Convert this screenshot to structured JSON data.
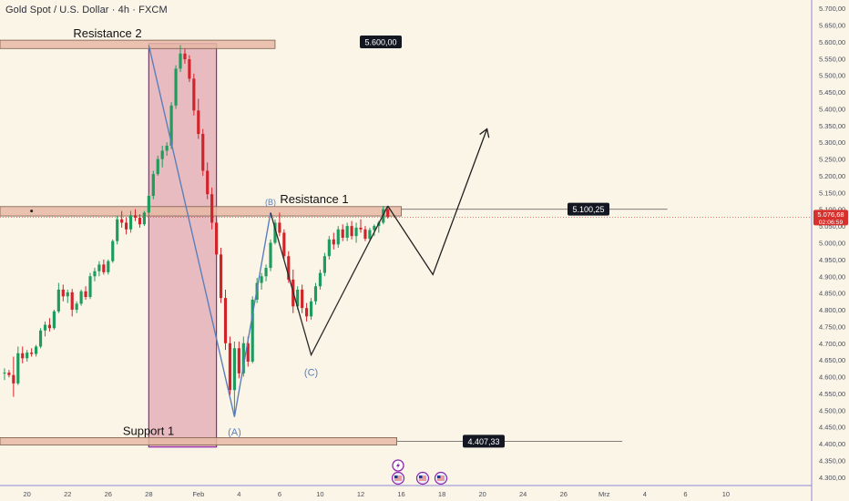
{
  "header": {
    "symbol_title": "Gold Spot / U.S. Dollar · 4h · FXCM"
  },
  "colors": {
    "background": "#fbf5e7",
    "bull": "#1e9b5d",
    "bear": "#d1232a",
    "zone_fill": "#e6b9a4",
    "zone_stroke": "#7a5d4c",
    "highlight_fill": "#e2a7b4",
    "highlight_stroke": "#8e24aa",
    "wave_line": "#5b7fba",
    "projection_line": "#1f1f1f",
    "current_price_bg": "#d6312d",
    "label_bg": "#131722",
    "axis_text": "#4a4e59",
    "axis_line": "#8e89d6"
  },
  "chart_data": {
    "type": "candlestick",
    "title": "Gold Spot / U.S. Dollar · 4h · FXCM",
    "y_axis": {
      "range": [
        4275,
        5725
      ],
      "ticks": [
        "5.700,00",
        "5.650,00",
        "5.600,00",
        "5.550,00",
        "5.500,00",
        "5.450,00",
        "5.400,00",
        "5.350,00",
        "5.300,00",
        "5.250,00",
        "5.200,00",
        "5.150,00",
        "5.100,00",
        "5.050,00",
        "5.000,00",
        "4.950,00",
        "4.900,00",
        "4.850,00",
        "4.800,00",
        "4.750,00",
        "4.700,00",
        "4.650,00",
        "4.600,00",
        "4.550,00",
        "4.500,00",
        "4.450,00",
        "4.400,00",
        "4.350,00",
        "4.300,00"
      ]
    },
    "x_axis": {
      "range": [
        0,
        90
      ],
      "ticks": [
        {
          "label": "20",
          "x": 3
        },
        {
          "label": "22",
          "x": 7.5
        },
        {
          "label": "26",
          "x": 12
        },
        {
          "label": "28",
          "x": 16.5
        },
        {
          "label": "Feb",
          "x": 22
        },
        {
          "label": "4",
          "x": 26.5
        },
        {
          "label": "6",
          "x": 31
        },
        {
          "label": "10",
          "x": 35.5
        },
        {
          "label": "12",
          "x": 40
        },
        {
          "label": "16",
          "x": 44.5
        },
        {
          "label": "18",
          "x": 49
        },
        {
          "label": "20",
          "x": 53.5
        },
        {
          "label": "24",
          "x": 58
        },
        {
          "label": "26",
          "x": 62.5
        },
        {
          "label": "Mrz",
          "x": 67
        },
        {
          "label": "4",
          "x": 71.5
        },
        {
          "label": "6",
          "x": 76
        },
        {
          "label": "10",
          "x": 80.5
        }
      ]
    },
    "candles": [
      {
        "x": 0.5,
        "o": 4610,
        "h": 4625,
        "l": 4590,
        "c": 4612
      },
      {
        "x": 1,
        "o": 4612,
        "h": 4620,
        "l": 4598,
        "c": 4605
      },
      {
        "x": 1.5,
        "o": 4605,
        "h": 4660,
        "l": 4540,
        "c": 4580
      },
      {
        "x": 2,
        "o": 4580,
        "h": 4690,
        "l": 4575,
        "c": 4670
      },
      {
        "x": 2.5,
        "o": 4670,
        "h": 4690,
        "l": 4640,
        "c": 4655
      },
      {
        "x": 3,
        "o": 4655,
        "h": 4680,
        "l": 4645,
        "c": 4672
      },
      {
        "x": 3.5,
        "o": 4672,
        "h": 4685,
        "l": 4660,
        "c": 4668
      },
      {
        "x": 4,
        "o": 4668,
        "h": 4695,
        "l": 4660,
        "c": 4690
      },
      {
        "x": 4.5,
        "o": 4690,
        "h": 4745,
        "l": 4685,
        "c": 4738
      },
      {
        "x": 5,
        "o": 4738,
        "h": 4765,
        "l": 4720,
        "c": 4755
      },
      {
        "x": 5.5,
        "o": 4755,
        "h": 4775,
        "l": 4735,
        "c": 4745
      },
      {
        "x": 6,
        "o": 4745,
        "h": 4800,
        "l": 4740,
        "c": 4795
      },
      {
        "x": 6.5,
        "o": 4795,
        "h": 4880,
        "l": 4790,
        "c": 4860
      },
      {
        "x": 7,
        "o": 4860,
        "h": 4875,
        "l": 4825,
        "c": 4840
      },
      {
        "x": 7.5,
        "o": 4840,
        "h": 4860,
        "l": 4820,
        "c": 4852
      },
      {
        "x": 8,
        "o": 4852,
        "h": 4862,
        "l": 4780,
        "c": 4800
      },
      {
        "x": 8.5,
        "o": 4800,
        "h": 4825,
        "l": 4790,
        "c": 4818
      },
      {
        "x": 9,
        "o": 4818,
        "h": 4860,
        "l": 4812,
        "c": 4855
      },
      {
        "x": 9.5,
        "o": 4855,
        "h": 4870,
        "l": 4830,
        "c": 4838
      },
      {
        "x": 10,
        "o": 4838,
        "h": 4910,
        "l": 4832,
        "c": 4900
      },
      {
        "x": 10.5,
        "o": 4900,
        "h": 4925,
        "l": 4885,
        "c": 4915
      },
      {
        "x": 11,
        "o": 4915,
        "h": 4945,
        "l": 4900,
        "c": 4935
      },
      {
        "x": 11.5,
        "o": 4935,
        "h": 4950,
        "l": 4905,
        "c": 4912
      },
      {
        "x": 12,
        "o": 4912,
        "h": 4950,
        "l": 4905,
        "c": 4945
      },
      {
        "x": 12.5,
        "o": 4945,
        "h": 5010,
        "l": 4940,
        "c": 5005
      },
      {
        "x": 13,
        "o": 5005,
        "h": 5080,
        "l": 4995,
        "c": 5070
      },
      {
        "x": 13.5,
        "o": 5070,
        "h": 5095,
        "l": 5045,
        "c": 5060
      },
      {
        "x": 14,
        "o": 5060,
        "h": 5075,
        "l": 5025,
        "c": 5040
      },
      {
        "x": 14.5,
        "o": 5040,
        "h": 5095,
        "l": 5030,
        "c": 5082
      },
      {
        "x": 15,
        "o": 5082,
        "h": 5100,
        "l": 5065,
        "c": 5075
      },
      {
        "x": 15.5,
        "o": 5075,
        "h": 5085,
        "l": 5045,
        "c": 5055
      },
      {
        "x": 16,
        "o": 5055,
        "h": 5095,
        "l": 5050,
        "c": 5090
      },
      {
        "x": 16.5,
        "o": 5090,
        "h": 5150,
        "l": 5070,
        "c": 5140
      },
      {
        "x": 17,
        "o": 5140,
        "h": 5215,
        "l": 5130,
        "c": 5205
      },
      {
        "x": 17.5,
        "o": 5205,
        "h": 5260,
        "l": 5200,
        "c": 5250
      },
      {
        "x": 18,
        "o": 5250,
        "h": 5290,
        "l": 5225,
        "c": 5275
      },
      {
        "x": 18.5,
        "o": 5275,
        "h": 5300,
        "l": 5260,
        "c": 5290
      },
      {
        "x": 19,
        "o": 5290,
        "h": 5420,
        "l": 5280,
        "c": 5410
      },
      {
        "x": 19.5,
        "o": 5410,
        "h": 5530,
        "l": 5400,
        "c": 5520
      },
      {
        "x": 20,
        "o": 5520,
        "h": 5590,
        "l": 5510,
        "c": 5565
      },
      {
        "x": 20.5,
        "o": 5565,
        "h": 5580,
        "l": 5535,
        "c": 5548
      },
      {
        "x": 21,
        "o": 5548,
        "h": 5560,
        "l": 5480,
        "c": 5490
      },
      {
        "x": 21.5,
        "o": 5490,
        "h": 5505,
        "l": 5380,
        "c": 5395
      },
      {
        "x": 22,
        "o": 5395,
        "h": 5430,
        "l": 5310,
        "c": 5325
      },
      {
        "x": 22.5,
        "o": 5325,
        "h": 5340,
        "l": 5200,
        "c": 5215
      },
      {
        "x": 23,
        "o": 5215,
        "h": 5240,
        "l": 5130,
        "c": 5145
      },
      {
        "x": 23.5,
        "o": 5145,
        "h": 5165,
        "l": 5040,
        "c": 5060
      },
      {
        "x": 24,
        "o": 5060,
        "h": 5080,
        "l": 4950,
        "c": 4965
      },
      {
        "x": 24.5,
        "o": 4965,
        "h": 4985,
        "l": 4820,
        "c": 4835
      },
      {
        "x": 25,
        "o": 4835,
        "h": 4860,
        "l": 4680,
        "c": 4700
      },
      {
        "x": 25.5,
        "o": 4700,
        "h": 4720,
        "l": 4545,
        "c": 4560
      },
      {
        "x": 26,
        "o": 4560,
        "h": 4705,
        "l": 4480,
        "c": 4685
      },
      {
        "x": 26.5,
        "o": 4685,
        "h": 4705,
        "l": 4595,
        "c": 4610
      },
      {
        "x": 27,
        "o": 4610,
        "h": 4720,
        "l": 4600,
        "c": 4700
      },
      {
        "x": 27.5,
        "o": 4700,
        "h": 4720,
        "l": 4630,
        "c": 4645
      },
      {
        "x": 28,
        "o": 4645,
        "h": 4840,
        "l": 4640,
        "c": 4830
      },
      {
        "x": 28.5,
        "o": 4830,
        "h": 4895,
        "l": 4820,
        "c": 4880
      },
      {
        "x": 29,
        "o": 4880,
        "h": 4910,
        "l": 4860,
        "c": 4900
      },
      {
        "x": 29.5,
        "o": 4900,
        "h": 4935,
        "l": 4885,
        "c": 4925
      },
      {
        "x": 30,
        "o": 4925,
        "h": 5010,
        "l": 4915,
        "c": 5000
      },
      {
        "x": 30.5,
        "o": 5000,
        "h": 5070,
        "l": 4995,
        "c": 5060
      },
      {
        "x": 31,
        "o": 5060,
        "h": 5090,
        "l": 5020,
        "c": 5030
      },
      {
        "x": 31.5,
        "o": 5030,
        "h": 5040,
        "l": 4950,
        "c": 4960
      },
      {
        "x": 32,
        "o": 4960,
        "h": 4975,
        "l": 4880,
        "c": 4890
      },
      {
        "x": 32.5,
        "o": 4890,
        "h": 4920,
        "l": 4790,
        "c": 4810
      },
      {
        "x": 33,
        "o": 4810,
        "h": 4870,
        "l": 4800,
        "c": 4860
      },
      {
        "x": 33.5,
        "o": 4860,
        "h": 4875,
        "l": 4790,
        "c": 4805
      },
      {
        "x": 34,
        "o": 4805,
        "h": 4820,
        "l": 4765,
        "c": 4780
      },
      {
        "x": 34.5,
        "o": 4780,
        "h": 4835,
        "l": 4770,
        "c": 4825
      },
      {
        "x": 35,
        "o": 4825,
        "h": 4880,
        "l": 4815,
        "c": 4870
      },
      {
        "x": 35.5,
        "o": 4870,
        "h": 4920,
        "l": 4860,
        "c": 4910
      },
      {
        "x": 36,
        "o": 4910,
        "h": 4970,
        "l": 4900,
        "c": 4960
      },
      {
        "x": 36.5,
        "o": 4960,
        "h": 5020,
        "l": 4950,
        "c": 5010
      },
      {
        "x": 37,
        "o": 5010,
        "h": 5030,
        "l": 4980,
        "c": 4995
      },
      {
        "x": 37.5,
        "o": 4995,
        "h": 5050,
        "l": 4985,
        "c": 5040
      },
      {
        "x": 38,
        "o": 5040,
        "h": 5055,
        "l": 5005,
        "c": 5015
      },
      {
        "x": 38.5,
        "o": 5015,
        "h": 5060,
        "l": 5005,
        "c": 5050
      },
      {
        "x": 39,
        "o": 5050,
        "h": 5065,
        "l": 5010,
        "c": 5020
      },
      {
        "x": 39.5,
        "o": 5020,
        "h": 5060,
        "l": 5000,
        "c": 5045
      },
      {
        "x": 40,
        "o": 5045,
        "h": 5070,
        "l": 5030,
        "c": 5040
      },
      {
        "x": 40.5,
        "o": 5040,
        "h": 5050,
        "l": 5005,
        "c": 5012
      },
      {
        "x": 41,
        "o": 5012,
        "h": 5045,
        "l": 5005,
        "c": 5038
      },
      {
        "x": 41.5,
        "o": 5038,
        "h": 5055,
        "l": 5020,
        "c": 5050
      },
      {
        "x": 42,
        "o": 5050,
        "h": 5065,
        "l": 5030,
        "c": 5060
      },
      {
        "x": 42.5,
        "o": 5060,
        "h": 5110,
        "l": 5055,
        "c": 5100
      },
      {
        "x": 43,
        "o": 5100,
        "h": 5108,
        "l": 5072,
        "c": 5077
      }
    ],
    "zones": [
      {
        "name": "Resistance 2",
        "top": 5605,
        "bottom": 5580,
        "x_end": 30.5,
        "label": "Resistance 2",
        "price_label": "5.600,00"
      },
      {
        "name": "Resistance 1",
        "top": 5108,
        "bottom": 5080,
        "x_end": 44.5,
        "label": "Resistance 1",
        "price_label": "5.100,25"
      },
      {
        "name": "Support 1",
        "top": 4418,
        "bottom": 4396,
        "x_end": 44,
        "label": "Support 1",
        "price_label": "4.407,33"
      }
    ],
    "highlight_range": {
      "x_start": 16.5,
      "x_end": 24,
      "top": 5595,
      "bottom": 4390
    },
    "wave_points": [
      {
        "x": 16.5,
        "y": 5590
      },
      {
        "x": 26,
        "y": 4480
      },
      {
        "x": 30,
        "y": 5090
      },
      {
        "x": 34.5,
        "y": 4665
      },
      {
        "x": 43,
        "y": 5110
      }
    ],
    "wave_labels": [
      {
        "label": "(A)",
        "x": 26,
        "y": 4460
      },
      {
        "label": "(B)",
        "x": 30,
        "y": 5110
      },
      {
        "label": "(C)",
        "x": 34.5,
        "y": 4630
      }
    ],
    "projection": [
      {
        "x": 43,
        "y": 5110
      },
      {
        "x": 48,
        "y": 4905
      },
      {
        "x": 54,
        "y": 5340
      }
    ],
    "current_price": {
      "value": 5076.68,
      "label": "5.076,68",
      "countdown": "02:06:59"
    },
    "markers": [
      "lightning",
      "us-flag",
      "us-flag",
      "us-flag"
    ]
  }
}
